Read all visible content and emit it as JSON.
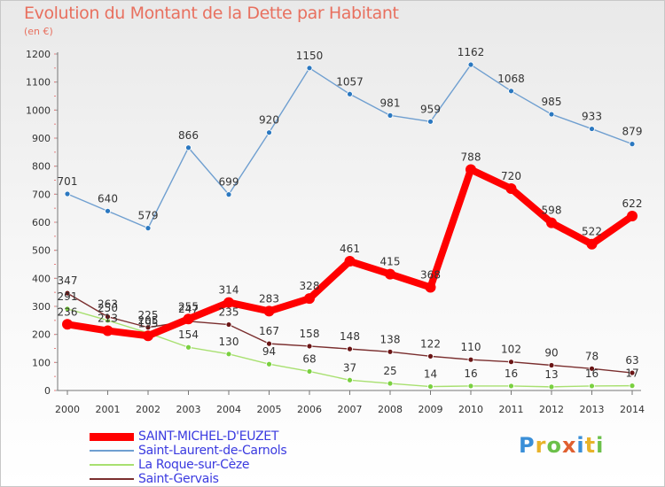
{
  "header": {
    "title": "Evolution du Montant de la Dette par Habitant",
    "unit": "(en €)"
  },
  "logo": {
    "text": "Proxiti",
    "letter_colors": [
      "#3a8fd8",
      "#e8b32a",
      "#6cc04a",
      "#e06030",
      "#3a8fd8",
      "#e8b32a",
      "#6cc04a"
    ]
  },
  "chart_data": {
    "type": "line",
    "title": "Evolution du Montant de la Dette par Habitant",
    "ylabel": "(en €)",
    "xlabel": "",
    "x": [
      "2000",
      "2001",
      "2002",
      "2003",
      "2004",
      "2005",
      "2006",
      "2007",
      "2008",
      "2009",
      "2010",
      "2011",
      "2012",
      "2013",
      "2014"
    ],
    "ylim": [
      0,
      1200
    ],
    "yticks": [
      "0",
      "100",
      "200",
      "300",
      "400",
      "500",
      "600",
      "700",
      "800",
      "900",
      "1000",
      "1100",
      "1200"
    ],
    "grid": false,
    "legend_position": "bottom-left",
    "series": [
      {
        "name": "SAINT-MICHEL-D'EUZET",
        "color": "#ff0000",
        "marker_color": "#ff0000",
        "highlight": true,
        "values": [
          236,
          213,
          195,
          255,
          314,
          283,
          328,
          461,
          415,
          368,
          788,
          720,
          598,
          522,
          622
        ],
        "labels": [
          "236",
          "213",
          "195",
          "255",
          "314",
          "283",
          "328",
          "461",
          "415",
          "368",
          "788",
          "720",
          "598",
          "522",
          "622"
        ]
      },
      {
        "name": "Saint-Laurent-de-Carnols",
        "color": "#6f9fd0",
        "marker_color": "#2b78c0",
        "highlight": false,
        "values": [
          701,
          640,
          579,
          866,
          699,
          920,
          1150,
          1057,
          981,
          959,
          1162,
          1068,
          985,
          933,
          879
        ],
        "labels": [
          "701",
          "640",
          "579",
          "866",
          "699",
          "920",
          "1150",
          "1057",
          "981",
          "959",
          "1162",
          "1068",
          "985",
          "933",
          "879"
        ]
      },
      {
        "name": "La Roque-sur-Cèze",
        "color": "#a8e070",
        "marker_color": "#7ad040",
        "highlight": false,
        "values": [
          291,
          250,
          205,
          154,
          130,
          94,
          68,
          37,
          25,
          14,
          16,
          16,
          13,
          16,
          17
        ],
        "labels": [
          "291",
          "250",
          "205",
          "154",
          "130",
          "94",
          "68",
          "37",
          "25",
          "14",
          "16",
          "16",
          "13",
          "16",
          "17"
        ]
      },
      {
        "name": "Saint-Gervais",
        "color": "#7a2e2e",
        "marker_color": "#6a1515",
        "highlight": false,
        "values": [
          347,
          263,
          225,
          247,
          235,
          167,
          158,
          148,
          138,
          122,
          110,
          102,
          90,
          78,
          63
        ],
        "labels": [
          "347",
          "263",
          "225",
          "247",
          "235",
          "167",
          "158",
          "148",
          "138",
          "122",
          "110",
          "102",
          "90",
          "78",
          "63"
        ]
      }
    ]
  }
}
